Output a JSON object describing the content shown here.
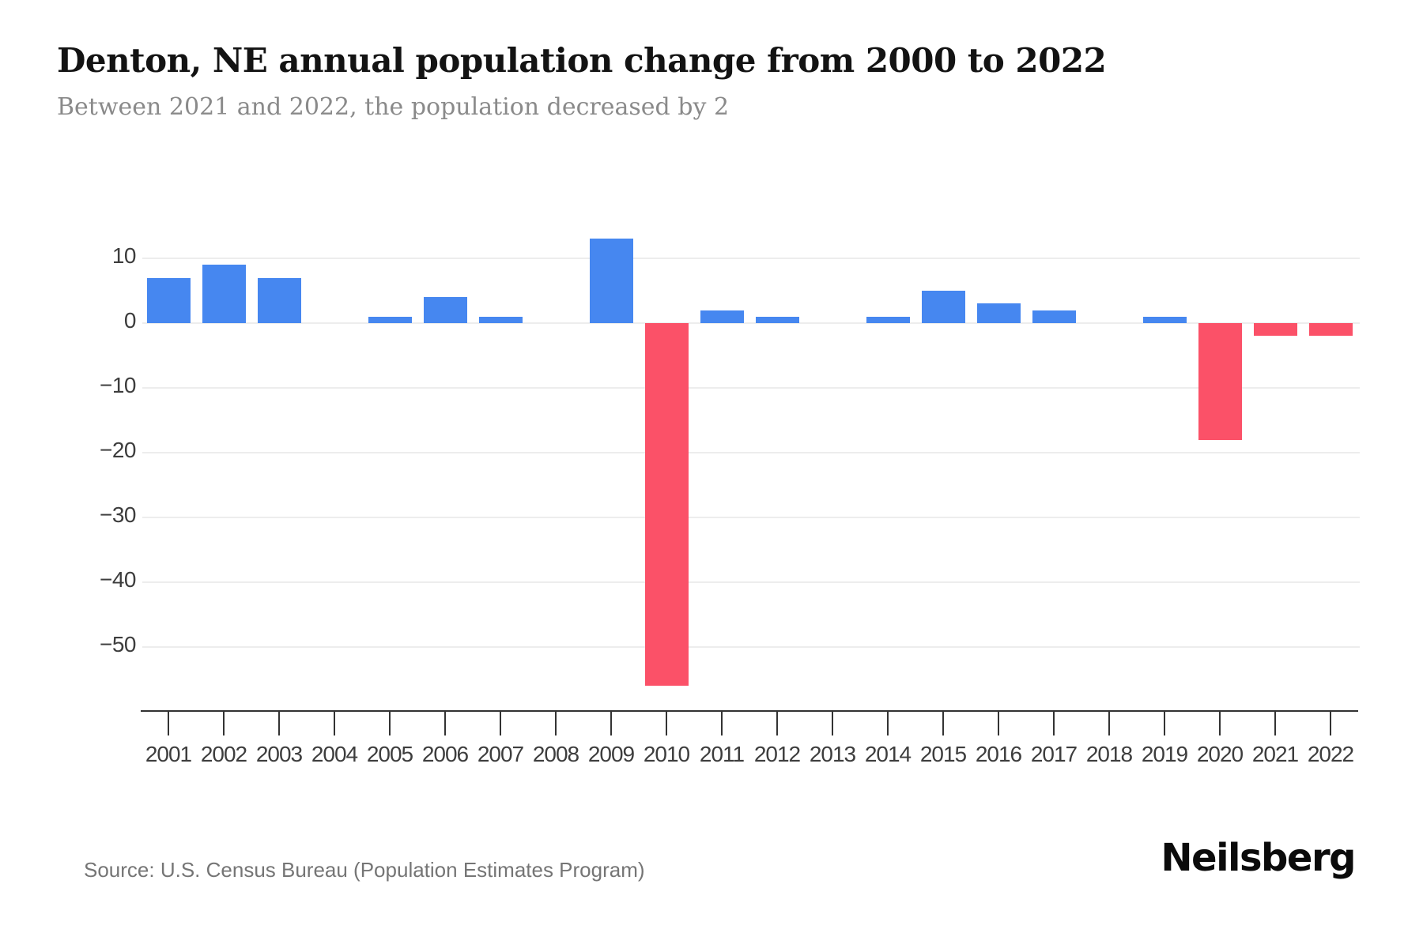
{
  "header": {
    "title": "Denton, NE annual population change from 2000 to 2022",
    "subtitle": "Between 2021 and 2022, the population decreased by 2"
  },
  "footer": {
    "source": "Source: U.S. Census Bureau (Population Estimates Program)",
    "brand": "Neilsberg"
  },
  "colors": {
    "positive_bar": "#4687f0",
    "negative_bar": "#fb5168",
    "gridline": "#ededed",
    "axis": "#333333",
    "tick_label": "#3d3d3d",
    "title": "#131313",
    "subtitle": "#8a8a8a",
    "source": "#757575",
    "background": "#ffffff"
  },
  "chart_data": {
    "type": "bar",
    "title": "Denton, NE annual population change from 2000 to 2022",
    "subtitle": "Between 2021 and 2022, the population decreased by 2",
    "xlabel": "",
    "ylabel": "",
    "categories": [
      "2001",
      "2002",
      "2003",
      "2004",
      "2005",
      "2006",
      "2007",
      "2008",
      "2009",
      "2010",
      "2011",
      "2012",
      "2013",
      "2014",
      "2015",
      "2016",
      "2017",
      "2018",
      "2019",
      "2020",
      "2021",
      "2022"
    ],
    "values": [
      7,
      9,
      7,
      0,
      1,
      4,
      1,
      0,
      13,
      -56,
      2,
      1,
      0,
      1,
      5,
      3,
      2,
      0,
      1,
      -18,
      -2,
      -2
    ],
    "yticks": [
      10,
      0,
      -10,
      -20,
      -30,
      -40,
      -50
    ],
    "ytick_labels": [
      "10",
      "0",
      "−10",
      "−20",
      "−30",
      "−40",
      "−50"
    ],
    "ylim": [
      -60,
      15
    ],
    "grid": true,
    "legend": false,
    "bar_color_positive": "#4687f0",
    "bar_color_negative": "#fb5168"
  }
}
